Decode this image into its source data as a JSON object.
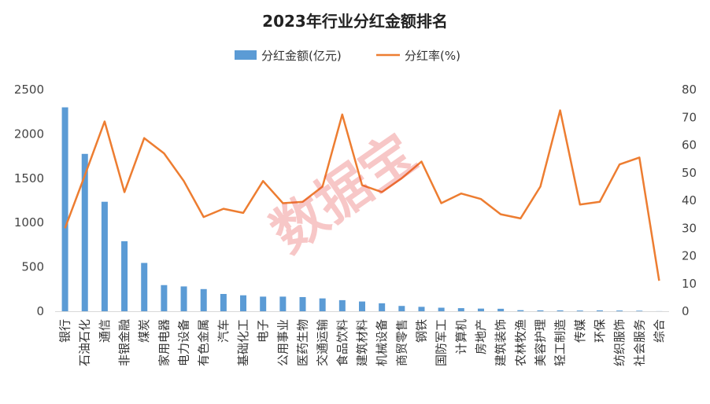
{
  "chart_data": {
    "type": "bar+line",
    "title": "2023年行业分红金额排名",
    "watermark": "数据宝",
    "categories": [
      "银行",
      "石油石化",
      "通信",
      "非银金融",
      "煤炭",
      "家用电器",
      "电力设备",
      "有色金属",
      "汽车",
      "基础化工",
      "电子",
      "公用事业",
      "医药生物",
      "交通运输",
      "食品饮料",
      "建筑材料",
      "机械设备",
      "商贸零售",
      "钢铁",
      "国防军工",
      "计算机",
      "房地产",
      "建筑装饰",
      "农林牧渔",
      "美容护理",
      "轻工制造",
      "传媒",
      "环保",
      "纺织服饰",
      "社会服务",
      "综合"
    ],
    "series": [
      {
        "name": "分红金额(亿元)",
        "type": "bar",
        "axis": "left",
        "color": "#5b9bd5",
        "values": [
          2300,
          1775,
          1235,
          790,
          545,
          295,
          280,
          250,
          195,
          180,
          165,
          165,
          160,
          145,
          125,
          110,
          90,
          60,
          50,
          40,
          35,
          30,
          28,
          12,
          10,
          10,
          8,
          10,
          8,
          6,
          1
        ]
      },
      {
        "name": "分红率(%)",
        "type": "line",
        "axis": "right",
        "color": "#ed7d31",
        "values": [
          30,
          49,
          68.5,
          43,
          62.5,
          57,
          47,
          34,
          37,
          35.5,
          47,
          39,
          39.5,
          45,
          71,
          45.5,
          43,
          48,
          54,
          39,
          42.5,
          40.5,
          35,
          33.5,
          45,
          72.5,
          38.5,
          39.5,
          53,
          55.5,
          11
        ]
      }
    ],
    "y_left": {
      "min": 0,
      "max": 2500,
      "ticks": [
        "2500",
        "2000",
        "1500",
        "1000",
        "500",
        "0"
      ]
    },
    "y_right": {
      "min": 0,
      "max": 80,
      "ticks": [
        "80",
        "70",
        "60",
        "50",
        "40",
        "30",
        "20",
        "10",
        "0"
      ]
    },
    "legend_position": "top-center",
    "grid": false
  }
}
